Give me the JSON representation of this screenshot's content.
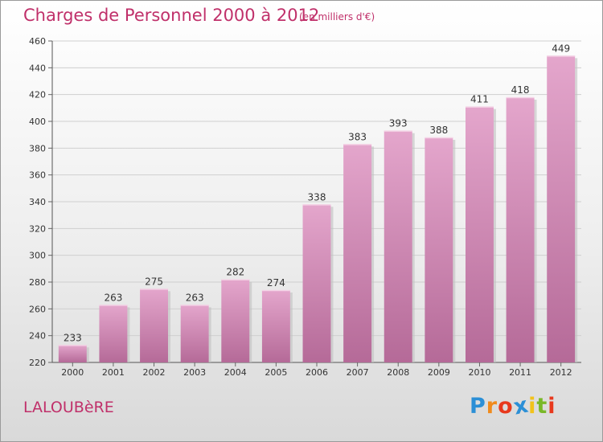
{
  "chart_data": {
    "type": "bar",
    "title": "Charges de Personnel 2000 à 2012",
    "subtitle": "(en milliers d'€)",
    "xlabel": "",
    "ylabel": "",
    "categories": [
      "2000",
      "2001",
      "2002",
      "2003",
      "2004",
      "2005",
      "2006",
      "2007",
      "2008",
      "2009",
      "2010",
      "2011",
      "2012"
    ],
    "values": [
      233,
      263,
      275,
      263,
      282,
      274,
      338,
      383,
      393,
      388,
      411,
      418,
      449
    ],
    "ylim": [
      220,
      460
    ],
    "yticks": [
      220,
      240,
      260,
      280,
      300,
      320,
      340,
      360,
      380,
      400,
      420,
      440,
      460
    ],
    "grid": true,
    "bar_color": "#d889b8"
  },
  "footer": {
    "commune": "LALOUBèRE",
    "logo_letters": [
      "P",
      "r",
      "o",
      "x",
      "i",
      "t",
      "i"
    ],
    "logo_colors": [
      "#2b8fd6",
      "#f08a1c",
      "#e8391d",
      "#2b8fd6",
      "#f2c21b",
      "#79b828",
      "#e8391d"
    ]
  }
}
